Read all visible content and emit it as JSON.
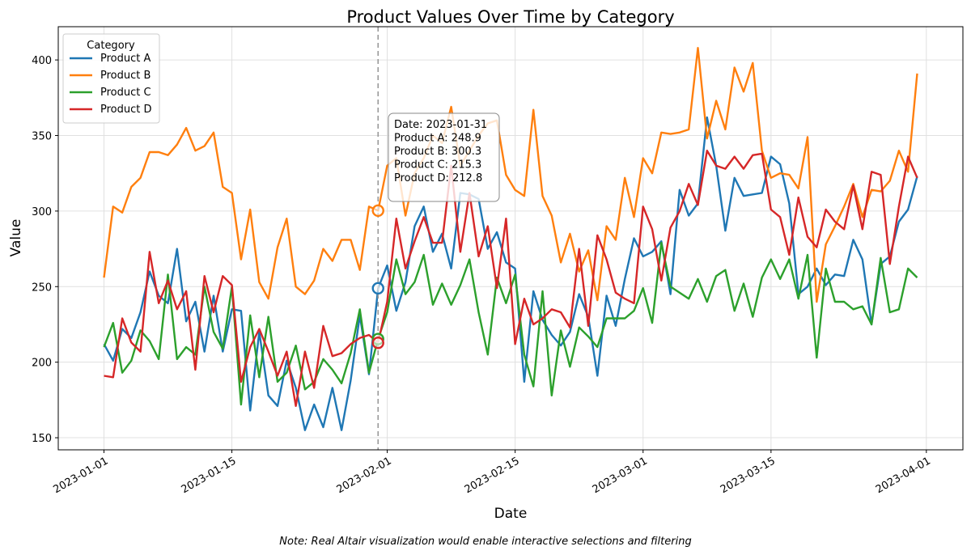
{
  "chart_data": {
    "type": "line",
    "title": "Product Values Over Time by Category",
    "xlabel": "Date",
    "ylabel": "Value",
    "note": "Note: Real Altair visualization would enable interactive selections and filtering",
    "xlim": [
      "2022-12-27",
      "2023-04-05"
    ],
    "ylim": [
      142,
      422
    ],
    "yticks": [
      150,
      200,
      250,
      300,
      350,
      400
    ],
    "xticks": [
      "2023-01-01",
      "2023-01-15",
      "2023-02-01",
      "2023-02-15",
      "2023-03-01",
      "2023-03-15",
      "2023-04-01"
    ],
    "grid": true,
    "legend": {
      "title": "Category",
      "placement": "top-left"
    },
    "x": [
      "2023-01-01",
      "2023-01-02",
      "2023-01-03",
      "2023-01-04",
      "2023-01-05",
      "2023-01-06",
      "2023-01-07",
      "2023-01-08",
      "2023-01-09",
      "2023-01-10",
      "2023-01-11",
      "2023-01-12",
      "2023-01-13",
      "2023-01-14",
      "2023-01-15",
      "2023-01-16",
      "2023-01-17",
      "2023-01-18",
      "2023-01-19",
      "2023-01-20",
      "2023-01-21",
      "2023-01-22",
      "2023-01-23",
      "2023-01-24",
      "2023-01-25",
      "2023-01-26",
      "2023-01-27",
      "2023-01-28",
      "2023-01-29",
      "2023-01-30",
      "2023-01-31",
      "2023-02-01",
      "2023-02-02",
      "2023-02-03",
      "2023-02-04",
      "2023-02-05",
      "2023-02-06",
      "2023-02-07",
      "2023-02-08",
      "2023-02-09",
      "2023-02-10",
      "2023-02-11",
      "2023-02-12",
      "2023-02-13",
      "2023-02-14",
      "2023-02-15",
      "2023-02-16",
      "2023-02-17",
      "2023-02-18",
      "2023-02-19",
      "2023-02-20",
      "2023-02-21",
      "2023-02-22",
      "2023-02-23",
      "2023-02-24",
      "2023-02-25",
      "2023-02-26",
      "2023-02-27",
      "2023-02-28",
      "2023-03-01",
      "2023-03-02",
      "2023-03-03",
      "2023-03-04",
      "2023-03-05",
      "2023-03-06",
      "2023-03-07",
      "2023-03-08",
      "2023-03-09",
      "2023-03-10",
      "2023-03-11",
      "2023-03-12",
      "2023-03-13",
      "2023-03-14",
      "2023-03-15",
      "2023-03-16",
      "2023-03-17",
      "2023-03-18",
      "2023-03-19",
      "2023-03-20",
      "2023-03-21",
      "2023-03-22",
      "2023-03-23",
      "2023-03-24",
      "2023-03-25",
      "2023-03-26",
      "2023-03-27",
      "2023-03-28",
      "2023-03-29",
      "2023-03-30",
      "2023-03-31"
    ],
    "series": [
      {
        "name": "Product A",
        "color": "#1f77b4",
        "values": [
          212,
          201,
          222,
          216,
          233,
          260,
          244,
          239,
          275,
          227,
          240,
          207,
          244,
          207,
          235,
          234,
          168,
          220,
          178,
          171,
          201,
          183,
          155,
          172,
          157,
          183,
          155,
          188,
          231,
          192,
          248.9,
          264,
          234,
          253,
          290,
          303,
          273,
          285,
          262,
          312,
          311,
          308,
          275,
          286,
          266,
          262,
          187,
          247,
          228,
          218,
          211,
          220,
          245,
          230,
          191,
          244,
          224,
          255,
          282,
          270,
          273,
          280,
          245,
          314,
          297,
          305,
          362,
          330,
          287,
          322,
          310,
          311,
          312,
          336,
          331,
          305,
          245,
          250,
          262,
          251,
          258,
          257,
          281,
          268,
          225,
          265,
          270,
          293,
          301,
          323
        ]
      },
      {
        "name": "Product B",
        "color": "#ff7f0e",
        "values": [
          256,
          303,
          299,
          316,
          322,
          339,
          339,
          337,
          344,
          355,
          340,
          343,
          352,
          316,
          312,
          268,
          301,
          253,
          242,
          276,
          295,
          250,
          245,
          254,
          275,
          267,
          281,
          281,
          261,
          303,
          300.3,
          330,
          335,
          297,
          325,
          335,
          350,
          345,
          369,
          330,
          340,
          350,
          358,
          360,
          324,
          314,
          310,
          367,
          310,
          297,
          266,
          285,
          260,
          274,
          241,
          290,
          281,
          322,
          296,
          335,
          325,
          352,
          351,
          352,
          354,
          408,
          348,
          373,
          354,
          395,
          379,
          398,
          340,
          322,
          325,
          324,
          315,
          349,
          240,
          278,
          290,
          303,
          318,
          296,
          314,
          313,
          320,
          340,
          326,
          391
        ]
      },
      {
        "name": "Product C",
        "color": "#2ca02c",
        "values": [
          210,
          226,
          193,
          201,
          221,
          214,
          202,
          258,
          202,
          210,
          205,
          250,
          220,
          209,
          250,
          172,
          231,
          190,
          230,
          187,
          193,
          211,
          182,
          187,
          202,
          195,
          186,
          206,
          235,
          193,
          215.3,
          233,
          268,
          245,
          253,
          271,
          238,
          252,
          238,
          251,
          268,
          233,
          205,
          256,
          239,
          258,
          205,
          184,
          247,
          178,
          221,
          197,
          223,
          217,
          210,
          229,
          229,
          229,
          234,
          249,
          226,
          279,
          250,
          246,
          242,
          255,
          240,
          257,
          261,
          234,
          252,
          230,
          256,
          268,
          255,
          268,
          242,
          271,
          203,
          262,
          240,
          240,
          235,
          237,
          225,
          269,
          233,
          235,
          262,
          256
        ]
      },
      {
        "name": "Product D",
        "color": "#d62728",
        "values": [
          191,
          190,
          229,
          213,
          207,
          273,
          239,
          254,
          235,
          247,
          195,
          257,
          233,
          257,
          251,
          187,
          210,
          222,
          207,
          191,
          207,
          171,
          207,
          183,
          224,
          204,
          206,
          212,
          216,
          218,
          212.8,
          240,
          295,
          262,
          280,
          296,
          279,
          279,
          330,
          273,
          312,
          270,
          290,
          249,
          295,
          212,
          242,
          225,
          229,
          235,
          233,
          223,
          275,
          224,
          284,
          268,
          246,
          242,
          239,
          303,
          288,
          254,
          289,
          300,
          318,
          304,
          340,
          330,
          328,
          336,
          328,
          337,
          338,
          301,
          296,
          271,
          309,
          283,
          276,
          301,
          293,
          288,
          317,
          288,
          326,
          324,
          265,
          303,
          336,
          322
        ]
      }
    ],
    "hover": {
      "date": "2023-01-31",
      "lines": [
        "Date: 2023-01-31",
        "Product A: 248.9",
        "Product B: 300.3",
        "Product C: 215.3",
        "Product D: 212.8"
      ]
    }
  }
}
